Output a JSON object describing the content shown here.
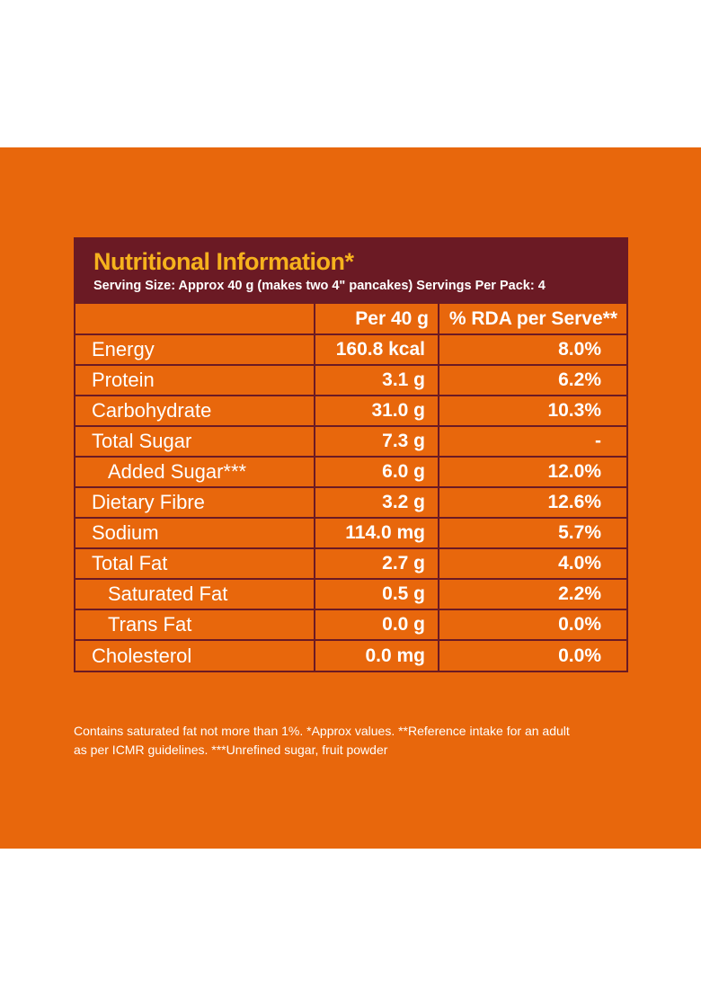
{
  "header": {
    "title": "Nutritional Information*",
    "serving": "Serving Size: Approx 40 g (makes two 4\" pancakes) Servings Per Pack: 4"
  },
  "columns": {
    "per": "Per 40 g",
    "rda": "% RDA per Serve**"
  },
  "rows": [
    {
      "name": "Energy",
      "per": "160.8 kcal",
      "rda": "8.0%"
    },
    {
      "name": "Protein",
      "per": "3.1 g",
      "rda": "6.2%"
    },
    {
      "name": "Carbohydrate",
      "per": "31.0 g",
      "rda": "10.3%"
    },
    {
      "name": "Total Sugar",
      "per": "7.3 g",
      "rda": "-"
    },
    {
      "name": "Added Sugar***",
      "per": "6.0 g",
      "rda": "12.0%"
    },
    {
      "name": "Dietary Fibre",
      "per": "3.2 g",
      "rda": "12.6%"
    },
    {
      "name": "Sodium",
      "per": "114.0 mg",
      "rda": "5.7%"
    },
    {
      "name": "Total Fat",
      "per": "2.7 g",
      "rda": "4.0%"
    },
    {
      "name": "Saturated Fat",
      "per": "0.5 g",
      "rda": "2.2%"
    },
    {
      "name": "Trans Fat",
      "per": "0.0 g",
      "rda": "0.0%"
    },
    {
      "name": "Cholesterol",
      "per": "0.0 mg",
      "rda": "0.0%"
    }
  ],
  "footnote": {
    "line1": "Contains saturated fat not more than 1%. *Approx values. **Reference intake for an adult",
    "line2": "as per ICMR guidelines. ***Unrefined sugar, fruit powder"
  },
  "colors": {
    "background": "#e8670c",
    "header_band": "#6b1a24",
    "title": "#f6b21d",
    "text": "#ffffff"
  }
}
